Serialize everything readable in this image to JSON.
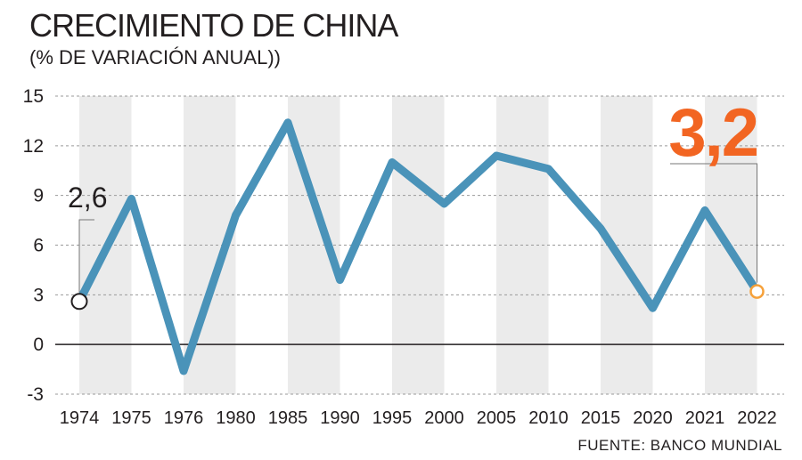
{
  "header": {
    "title": "CRECIMIENTO DE CHINA",
    "subtitle": "(% DE VARIACIÓN ANUAL))"
  },
  "footer": {
    "source": "FUENTE: BANCO MUNDIAL"
  },
  "chart_data": {
    "type": "line",
    "title": "CRECIMIENTO DE CHINA",
    "subtitle": "(% DE VARIACIÓN ANUAL))",
    "xlabel": "",
    "ylabel": "",
    "categories": [
      "1974",
      "1975",
      "1976",
      "1980",
      "1985",
      "1990",
      "1995",
      "2000",
      "2005",
      "2010",
      "2015",
      "2020",
      "2021",
      "2022"
    ],
    "series": [
      {
        "values": [
          2.6,
          8.8,
          -1.6,
          7.8,
          13.4,
          3.9,
          11.0,
          8.5,
          11.4,
          10.6,
          7.0,
          2.2,
          8.1,
          3.2
        ]
      }
    ],
    "yticks": [
      15,
      12,
      9,
      6,
      3,
      0,
      -3
    ],
    "ylim": [
      -3,
      15
    ],
    "grid": true,
    "annotations": [
      {
        "category": "1974",
        "text": "2,6"
      },
      {
        "category": "2022",
        "text": "3,2"
      }
    ],
    "colors": {
      "line": "#4a93b9",
      "band": "#ebebeb",
      "grid": "#9a9a9a",
      "highlight": "#f26522",
      "endpoint": "#f6a13a",
      "text": "#231f20"
    }
  }
}
